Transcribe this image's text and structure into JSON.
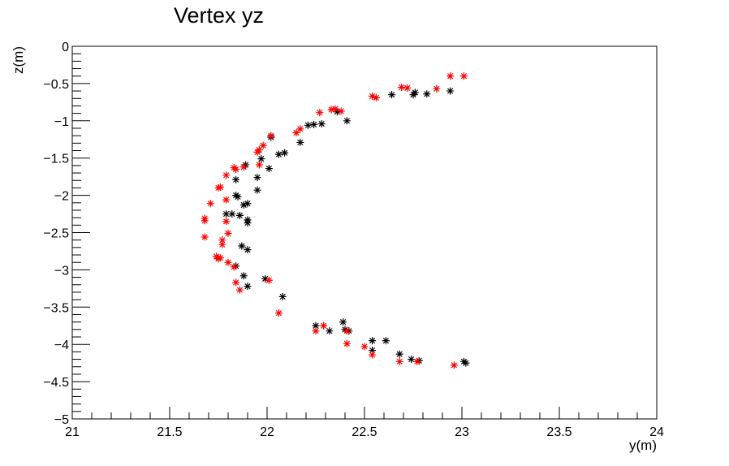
{
  "chart_data": {
    "type": "scatter",
    "title": "Vertex yz",
    "xlabel": "y(m)",
    "ylabel": "z(m)",
    "xlim": [
      21,
      24
    ],
    "ylim": [
      -5,
      0
    ],
    "x_ticks": [
      "21",
      "21.5",
      "22",
      "22.5",
      "23",
      "23.5",
      "24"
    ],
    "y_ticks": [
      "0",
      "−0.5",
      "−1",
      "−1.5",
      "−2",
      "−2.5",
      "−3",
      "−3.5",
      "−4",
      "−4.5",
      "−5"
    ],
    "grid": false,
    "marker": "asterisk",
    "series": [
      {
        "color": "#000000",
        "points": [
          [
            22.94,
            -0.6
          ],
          [
            22.82,
            -0.64
          ],
          [
            22.76,
            -0.62
          ],
          [
            22.75,
            -0.65
          ],
          [
            22.64,
            -0.65
          ],
          [
            22.41,
            -1.0
          ],
          [
            22.36,
            -0.88
          ],
          [
            22.28,
            -1.04
          ],
          [
            22.24,
            -1.05
          ],
          [
            22.21,
            -1.06
          ],
          [
            22.17,
            -1.29
          ],
          [
            22.09,
            -1.43
          ],
          [
            22.06,
            -1.45
          ],
          [
            22.02,
            -1.22
          ],
          [
            22.01,
            -1.64
          ],
          [
            21.97,
            -1.51
          ],
          [
            21.95,
            -1.76
          ],
          [
            21.95,
            -1.93
          ],
          [
            21.89,
            -1.59
          ],
          [
            21.84,
            -1.79
          ],
          [
            21.84,
            -2.0
          ],
          [
            21.85,
            -2.02
          ],
          [
            21.9,
            -2.11
          ],
          [
            21.88,
            -2.13
          ],
          [
            21.79,
            -2.25
          ],
          [
            21.82,
            -2.25
          ],
          [
            21.86,
            -2.27
          ],
          [
            21.9,
            -2.33
          ],
          [
            21.9,
            -2.37
          ],
          [
            21.87,
            -2.68
          ],
          [
            21.9,
            -2.73
          ],
          [
            21.84,
            -2.95
          ],
          [
            21.88,
            -3.08
          ],
          [
            21.99,
            -3.12
          ],
          [
            21.9,
            -3.22
          ],
          [
            22.08,
            -3.36
          ],
          [
            22.25,
            -3.75
          ],
          [
            22.32,
            -3.82
          ],
          [
            22.39,
            -3.7
          ],
          [
            22.4,
            -3.8
          ],
          [
            22.42,
            -3.82
          ],
          [
            22.54,
            -3.95
          ],
          [
            22.61,
            -3.95
          ],
          [
            22.54,
            -4.08
          ],
          [
            22.68,
            -4.13
          ],
          [
            22.74,
            -4.2
          ],
          [
            22.78,
            -4.22
          ],
          [
            23.01,
            -4.23
          ],
          [
            23.02,
            -4.25
          ]
        ]
      },
      {
        "color": "#ff0000",
        "points": [
          [
            23.01,
            -0.4
          ],
          [
            22.94,
            -0.4
          ],
          [
            22.87,
            -0.57
          ],
          [
            22.72,
            -0.56
          ],
          [
            22.69,
            -0.55
          ],
          [
            22.56,
            -0.69
          ],
          [
            22.54,
            -0.67
          ],
          [
            22.38,
            -0.87
          ],
          [
            22.35,
            -0.84
          ],
          [
            22.33,
            -0.85
          ],
          [
            22.27,
            -0.89
          ],
          [
            22.17,
            -1.11
          ],
          [
            22.15,
            -1.16
          ],
          [
            22.02,
            -1.2
          ],
          [
            21.98,
            -1.33
          ],
          [
            21.96,
            -1.39
          ],
          [
            21.95,
            -1.42
          ],
          [
            21.96,
            -1.59
          ],
          [
            21.88,
            -1.62
          ],
          [
            21.84,
            -1.65
          ],
          [
            21.83,
            -1.63
          ],
          [
            21.79,
            -1.73
          ],
          [
            21.75,
            -1.9
          ],
          [
            21.76,
            -1.89
          ],
          [
            21.79,
            -2.06
          ],
          [
            21.71,
            -2.11
          ],
          [
            21.68,
            -2.31
          ],
          [
            21.68,
            -2.34
          ],
          [
            21.68,
            -2.56
          ],
          [
            21.79,
            -2.35
          ],
          [
            21.8,
            -2.51
          ],
          [
            21.77,
            -2.6
          ],
          [
            21.77,
            -2.66
          ],
          [
            21.74,
            -2.82
          ],
          [
            21.76,
            -2.84
          ],
          [
            21.75,
            -2.85
          ],
          [
            21.8,
            -2.9
          ],
          [
            21.83,
            -2.96
          ],
          [
            21.84,
            -3.17
          ],
          [
            21.86,
            -3.27
          ],
          [
            22.01,
            -3.14
          ],
          [
            22.06,
            -3.58
          ],
          [
            22.25,
            -3.82
          ],
          [
            22.29,
            -3.75
          ],
          [
            22.41,
            -3.82
          ],
          [
            22.41,
            -3.99
          ],
          [
            22.5,
            -4.03
          ],
          [
            22.54,
            -4.14
          ],
          [
            22.68,
            -4.23
          ],
          [
            22.77,
            -4.23
          ],
          [
            22.96,
            -4.28
          ]
        ]
      }
    ]
  }
}
